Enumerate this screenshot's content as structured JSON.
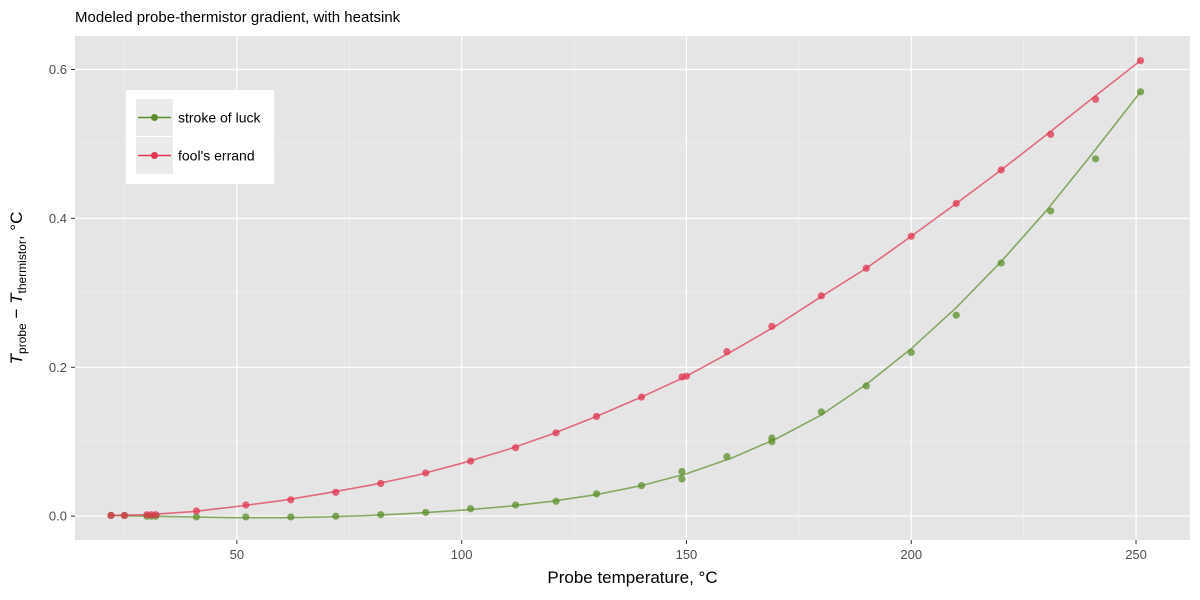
{
  "chart_data": {
    "type": "scatter",
    "title": "Modeled probe-thermistor gradient, with heatsink",
    "xlabel": "Probe temperature, °C",
    "ylabel": {
      "t1": "T",
      "sub1": "probe",
      "minus": " − ",
      "t2": "T",
      "sub2": "thermistor",
      "unit": ", °C"
    },
    "xlim": [
      14,
      262
    ],
    "ylim": [
      -0.032,
      0.645
    ],
    "x_ticks": [
      50,
      100,
      150,
      200,
      250
    ],
    "x_tick_labels": [
      "50",
      "100",
      "150",
      "200",
      "250"
    ],
    "y_ticks": [
      0.0,
      0.2,
      0.4,
      0.6
    ],
    "y_tick_labels": [
      "0.0",
      "0.2",
      "0.4",
      "0.6"
    ],
    "grid": true,
    "legend_position": "top-left",
    "series": [
      {
        "name": "stroke of luck",
        "color": "#5b8f2a",
        "points": [
          [
            22,
            0.001
          ],
          [
            25,
            0.001
          ],
          [
            30,
            0.0
          ],
          [
            31,
            0.0
          ],
          [
            32,
            0.0
          ],
          [
            41,
            -0.001
          ],
          [
            52,
            -0.001
          ],
          [
            62,
            -0.001
          ],
          [
            72,
            0.0
          ],
          [
            82,
            0.002
          ],
          [
            92,
            0.005
          ],
          [
            102,
            0.01
          ],
          [
            112,
            0.015
          ],
          [
            121,
            0.02
          ],
          [
            130,
            0.03
          ],
          [
            140,
            0.041
          ],
          [
            149,
            0.05
          ],
          [
            149,
            0.06
          ],
          [
            159,
            0.08
          ],
          [
            169,
            0.1
          ],
          [
            169,
            0.105
          ],
          [
            180,
            0.14
          ],
          [
            190,
            0.175
          ],
          [
            200,
            0.22
          ],
          [
            210,
            0.27
          ],
          [
            220,
            0.34
          ],
          [
            231,
            0.41
          ],
          [
            241,
            0.48
          ],
          [
            251,
            0.57
          ]
        ],
        "curve": [
          [
            22,
            0.001
          ],
          [
            30,
            0.0
          ],
          [
            40,
            -0.001
          ],
          [
            50,
            -0.002
          ],
          [
            60,
            -0.002
          ],
          [
            70,
            -0.001
          ],
          [
            80,
            0.001
          ],
          [
            90,
            0.004
          ],
          [
            100,
            0.008
          ],
          [
            110,
            0.013
          ],
          [
            120,
            0.02
          ],
          [
            130,
            0.029
          ],
          [
            140,
            0.041
          ],
          [
            150,
            0.057
          ],
          [
            160,
            0.078
          ],
          [
            170,
            0.104
          ],
          [
            180,
            0.136
          ],
          [
            190,
            0.177
          ],
          [
            200,
            0.225
          ],
          [
            210,
            0.28
          ],
          [
            220,
            0.342
          ],
          [
            230,
            0.41
          ],
          [
            240,
            0.485
          ],
          [
            251,
            0.57
          ]
        ]
      },
      {
        "name": "fool's errand",
        "color": "#e0344f",
        "points": [
          [
            22,
            0.001
          ],
          [
            25,
            0.001
          ],
          [
            30,
            0.002
          ],
          [
            31,
            0.002
          ],
          [
            32,
            0.002
          ],
          [
            41,
            0.007
          ],
          [
            52,
            0.015
          ],
          [
            62,
            0.022
          ],
          [
            72,
            0.032
          ],
          [
            82,
            0.044
          ],
          [
            92,
            0.058
          ],
          [
            102,
            0.074
          ],
          [
            112,
            0.092
          ],
          [
            121,
            0.112
          ],
          [
            130,
            0.134
          ],
          [
            140,
            0.16
          ],
          [
            149,
            0.187
          ],
          [
            150,
            0.188
          ],
          [
            159,
            0.221
          ],
          [
            169,
            0.255
          ],
          [
            180,
            0.296
          ],
          [
            190,
            0.333
          ],
          [
            200,
            0.376
          ],
          [
            210,
            0.42
          ],
          [
            220,
            0.465
          ],
          [
            231,
            0.513
          ],
          [
            241,
            0.56
          ],
          [
            251,
            0.612
          ]
        ],
        "curve": [
          [
            22,
            0.001
          ],
          [
            30,
            0.002
          ],
          [
            40,
            0.006
          ],
          [
            50,
            0.013
          ],
          [
            60,
            0.021
          ],
          [
            70,
            0.031
          ],
          [
            80,
            0.042
          ],
          [
            90,
            0.055
          ],
          [
            100,
            0.071
          ],
          [
            110,
            0.089
          ],
          [
            120,
            0.11
          ],
          [
            130,
            0.134
          ],
          [
            140,
            0.16
          ],
          [
            150,
            0.188
          ],
          [
            160,
            0.221
          ],
          [
            170,
            0.256
          ],
          [
            180,
            0.295
          ],
          [
            190,
            0.333
          ],
          [
            200,
            0.376
          ],
          [
            210,
            0.42
          ],
          [
            220,
            0.465
          ],
          [
            230,
            0.512
          ],
          [
            240,
            0.56
          ],
          [
            251,
            0.612
          ]
        ]
      }
    ]
  }
}
